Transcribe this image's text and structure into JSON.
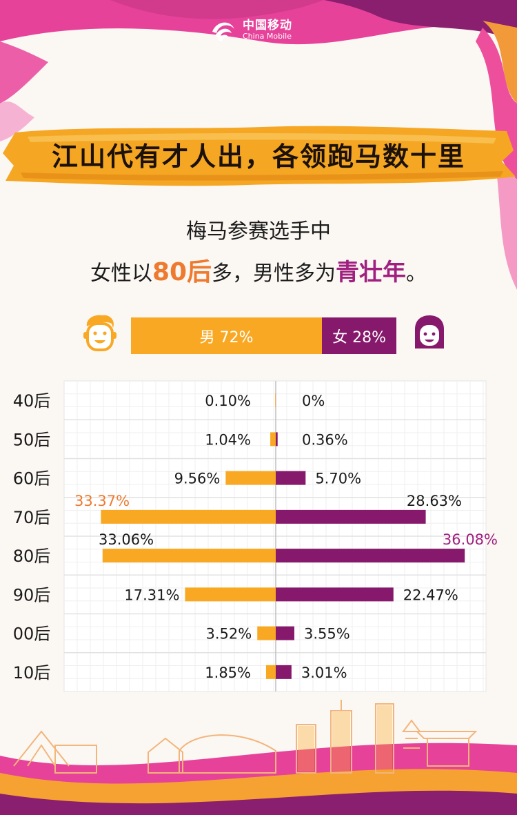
{
  "logo": {
    "name_cn": "中国移动",
    "name_en": "China Mobile"
  },
  "banner": {
    "title": "江山代有才人出，各领跑马数十里"
  },
  "subtitle": {
    "line1": "梅马参赛选手中",
    "line2_pre": "女性以",
    "line2_hl1": "80后",
    "line2_mid": "多，男性多为",
    "line2_hl2": "青壮年",
    "line2_post": "。"
  },
  "gender_ratio": {
    "male_label": "男 72%",
    "female_label": "女 28%",
    "male_share": 72,
    "female_share": 28
  },
  "colors": {
    "male": "#f9a823",
    "female": "#86196b",
    "male_highlight": "#ee7a2f",
    "female_highlight": "#a0207f"
  },
  "chart_data": {
    "type": "bar",
    "orientation": "horizontal-diverging",
    "categories": [
      "40后",
      "50后",
      "60后",
      "70后",
      "80后",
      "90后",
      "00后",
      "10后"
    ],
    "series": [
      {
        "name": "男",
        "values": [
          0.1,
          1.04,
          9.56,
          33.37,
          33.06,
          17.31,
          3.52,
          1.85
        ],
        "labels": [
          "0.10%",
          "1.04%",
          "9.56%",
          "33.37%",
          "33.06%",
          "17.31%",
          "3.52%",
          "1.85%"
        ]
      },
      {
        "name": "女",
        "values": [
          0,
          0.36,
          5.7,
          28.63,
          36.08,
          22.47,
          3.55,
          3.01
        ],
        "labels": [
          "0%",
          "0.36%",
          "5.70%",
          "28.63%",
          "36.08%",
          "22.47%",
          "3.55%",
          "3.01%"
        ]
      }
    ],
    "highlight": {
      "male_index": 3,
      "female_index": 4
    },
    "xlim": [
      -40,
      40
    ],
    "grid": true
  }
}
